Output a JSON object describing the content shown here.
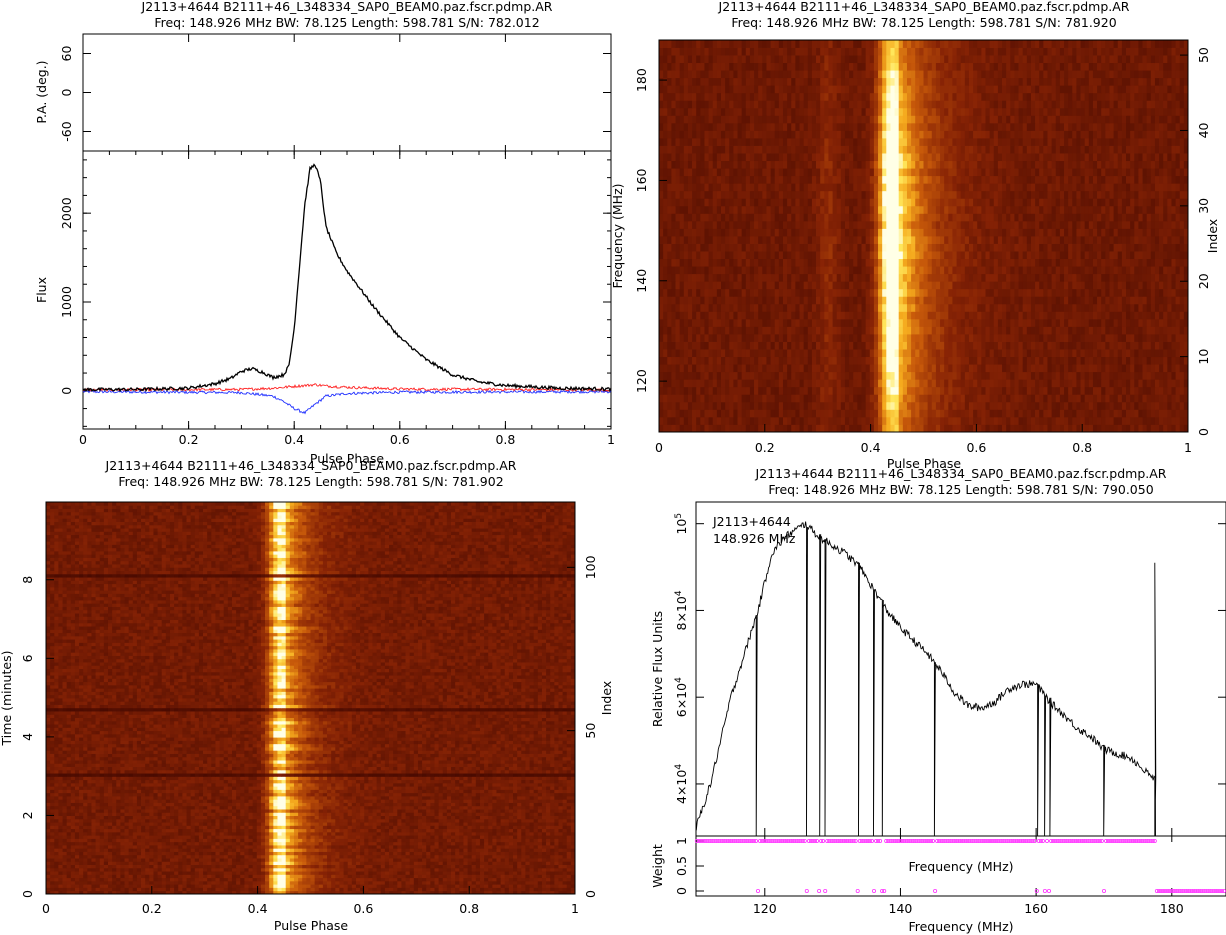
{
  "colors": {
    "stokes_I": "#000000",
    "linear_pol": "#ff2020",
    "circular_pol": "#2030ff",
    "weight_markers": "#ff33ff"
  },
  "panels": {
    "profile": {
      "title_line1": "J2113+4644  B2111+46_L348334_SAP0_BEAM0.paz.fscr.pdmp.AR",
      "title_line2": "Freq: 148.926 MHz BW: 78.125 Length: 598.781 S/N: 782.012",
      "pa_label": "P.A. (deg.)",
      "flux_label": "Flux",
      "xlabel": "Pulse Phase"
    },
    "freq_phase": {
      "title_line1": "J2113+4644  B2111+46_L348334_SAP0_BEAM0.paz.fscr.pdmp.AR",
      "title_line2": "Freq: 148.926 MHz BW: 78.125 Length: 598.781 S/N: 781.920",
      "ylabel": "Frequency (MHz)",
      "y2label": "Index",
      "xlabel": "Pulse Phase"
    },
    "time_phase": {
      "title_line1": "J2113+4644  B2111+46_L348334_SAP0_BEAM0.paz.fscr.pdmp.AR",
      "title_line2": "Freq: 148.926 MHz BW: 78.125 Length: 598.781 S/N: 781.902",
      "ylabel": "Time (minutes)",
      "y2label": "Index",
      "xlabel": "Pulse Phase"
    },
    "bandpass": {
      "title_line1": "J2113+4644  B2111+46_L348334_SAP0_BEAM0.paz.fscr.pdmp.AR",
      "title_line2": "Freq: 148.926 MHz BW: 78.125 Length: 598.781 S/N: 790.050",
      "annot_source": "J2113+4644",
      "annot_freq": "148.926 MHz",
      "ylabel": "Relative Flux Units",
      "weight_label": "Weight",
      "xlabel_mid": "Frequency (MHz)",
      "xlabel": "Frequency (MHz)"
    }
  },
  "chart_data": [
    {
      "type": "line",
      "name": "pulse-profile",
      "x_label": "Pulse Phase",
      "y_label": "Flux",
      "xlim": [
        0,
        1
      ],
      "ylim": [
        -430,
        2700
      ],
      "xticks": [
        0,
        0.2,
        0.4,
        0.6,
        0.8,
        1
      ],
      "xtick_labels": [
        "0",
        "0.2",
        "0.4",
        "0.6",
        "0.8",
        "1"
      ],
      "yticks": [
        0,
        1000,
        2000
      ],
      "ytick_labels": [
        "0",
        "1000",
        "2000"
      ],
      "series": [
        {
          "values_desc": "Stokes I",
          "x": [
            0,
            0.1,
            0.2,
            0.25,
            0.28,
            0.3,
            0.32,
            0.34,
            0.36,
            0.38,
            0.39,
            0.4,
            0.41,
            0.42,
            0.43,
            0.44,
            0.45,
            0.46,
            0.48,
            0.5,
            0.55,
            0.6,
            0.65,
            0.7,
            0.75,
            0.8,
            0.9,
            1.0
          ],
          "y": [
            15,
            15,
            30,
            80,
            140,
            220,
            250,
            210,
            150,
            180,
            280,
            700,
            1400,
            2100,
            2500,
            2550,
            2350,
            1850,
            1550,
            1350,
            950,
            600,
            350,
            180,
            100,
            60,
            30,
            20
          ]
        },
        {
          "values_desc": "Linear",
          "x": [
            0,
            0.3,
            0.36,
            0.4,
            0.42,
            0.44,
            0.46,
            0.5,
            0.6,
            1.0
          ],
          "y": [
            10,
            15,
            30,
            50,
            60,
            70,
            55,
            40,
            20,
            10
          ]
        },
        {
          "values_desc": "Circular",
          "x": [
            0,
            0.3,
            0.36,
            0.38,
            0.4,
            0.42,
            0.44,
            0.46,
            0.5,
            0.6,
            1.0
          ],
          "y": [
            -10,
            -20,
            -60,
            -120,
            -200,
            -250,
            -150,
            -60,
            -30,
            -15,
            -10
          ]
        }
      ]
    },
    {
      "type": "line",
      "name": "position-angle",
      "y_label": "P.A. (deg.)",
      "ylim": [
        -90,
        90
      ],
      "yticks": [
        -60,
        0,
        60
      ],
      "ytick_labels": [
        "-60",
        "0",
        "60"
      ]
    },
    {
      "type": "heatmap",
      "name": "frequency-vs-phase",
      "x_label": "Pulse Phase",
      "y_label": "Frequency (MHz)",
      "y2_label": "Index",
      "xlim": [
        0,
        1
      ],
      "ylim": [
        109.86,
        187.99
      ],
      "yticks": [
        120,
        140,
        160,
        180
      ],
      "ytick_labels": [
        "120",
        "140",
        "160",
        "180"
      ],
      "y2ticks": [
        0,
        10,
        20,
        30,
        40,
        50
      ],
      "y2tick_labels": [
        "0",
        "10",
        "20",
        "30",
        "40",
        "50"
      ],
      "xtick_labels": [
        "0",
        "0.2",
        "0.4",
        "0.6",
        "0.8",
        "1"
      ],
      "pulse_center_phase": 0.44,
      "pulse_width_phase": 0.06
    },
    {
      "type": "heatmap",
      "name": "time-vs-phase",
      "x_label": "Pulse Phase",
      "y_label": "Time (minutes)",
      "y2_label": "Index",
      "xlim": [
        0,
        1
      ],
      "ylim": [
        0,
        9.98
      ],
      "yticks": [
        0,
        2,
        4,
        6,
        8
      ],
      "ytick_labels": [
        "0",
        "2",
        "4",
        "6",
        "8"
      ],
      "y2ticks": [
        0,
        50,
        100
      ],
      "y2tick_labels": [
        "0",
        "50",
        "100"
      ],
      "xtick_labels": [
        "0",
        "0.2",
        "0.4",
        "0.6",
        "0.8",
        "1"
      ],
      "pulse_center_phase": 0.445,
      "pulse_width_phase": 0.05
    },
    {
      "type": "line",
      "name": "bandpass",
      "x_label": "Frequency (MHz)",
      "y_label": "Relative Flux Units",
      "xlim": [
        109.86,
        187.99
      ],
      "ylim": [
        28000,
        105000
      ],
      "xticks": [
        120,
        140,
        160,
        180
      ],
      "xtick_labels": [
        "120",
        "140",
        "160",
        "180"
      ],
      "yticks": [
        40000,
        60000,
        80000,
        100000
      ],
      "ytick_mantissa": [
        "4",
        "6",
        "8",
        ""
      ],
      "ytick_exponent": [
        "4",
        "4",
        "4",
        "5"
      ],
      "x": [
        109.9,
        112,
        115,
        118,
        119,
        121,
        123,
        125,
        126,
        128,
        130,
        132,
        134,
        136,
        138,
        140,
        142,
        144,
        146,
        148,
        150,
        152,
        154,
        156,
        158,
        160,
        162,
        164,
        166,
        168,
        170,
        172,
        174,
        176,
        177.5
      ],
      "y": [
        30000,
        40000,
        60000,
        75000,
        80000,
        93000,
        97000,
        99000,
        100000,
        97000,
        95000,
        93000,
        90000,
        85000,
        80000,
        76000,
        73000,
        70000,
        66000,
        61000,
        58000,
        57500,
        59000,
        62000,
        63000,
        63000,
        59000,
        56000,
        53000,
        51000,
        48000,
        47000,
        46000,
        43000,
        41000
      ],
      "dropouts_mhz": [
        118.8,
        126.2,
        128.1,
        128.9,
        133.8,
        136.0,
        137.3,
        145.0,
        160.2,
        161.2,
        162.0,
        170.0,
        177.5
      ]
    },
    {
      "type": "scatter",
      "name": "channel-weights",
      "y_label": "Weight",
      "ylim": [
        -0.1,
        1.1
      ],
      "yticks": [
        0,
        0.5,
        1
      ],
      "ytick_labels": [
        "0",
        "0.5",
        "1"
      ],
      "zero_weight_mhz": [
        119.0,
        126.2,
        128.1,
        128.9,
        133.8,
        136.0,
        137.3,
        137.6,
        145.0,
        160.2,
        161.4,
        162.0,
        170.0
      ],
      "zero_weight_range_mhz": [
        177.6,
        187.99
      ]
    }
  ]
}
